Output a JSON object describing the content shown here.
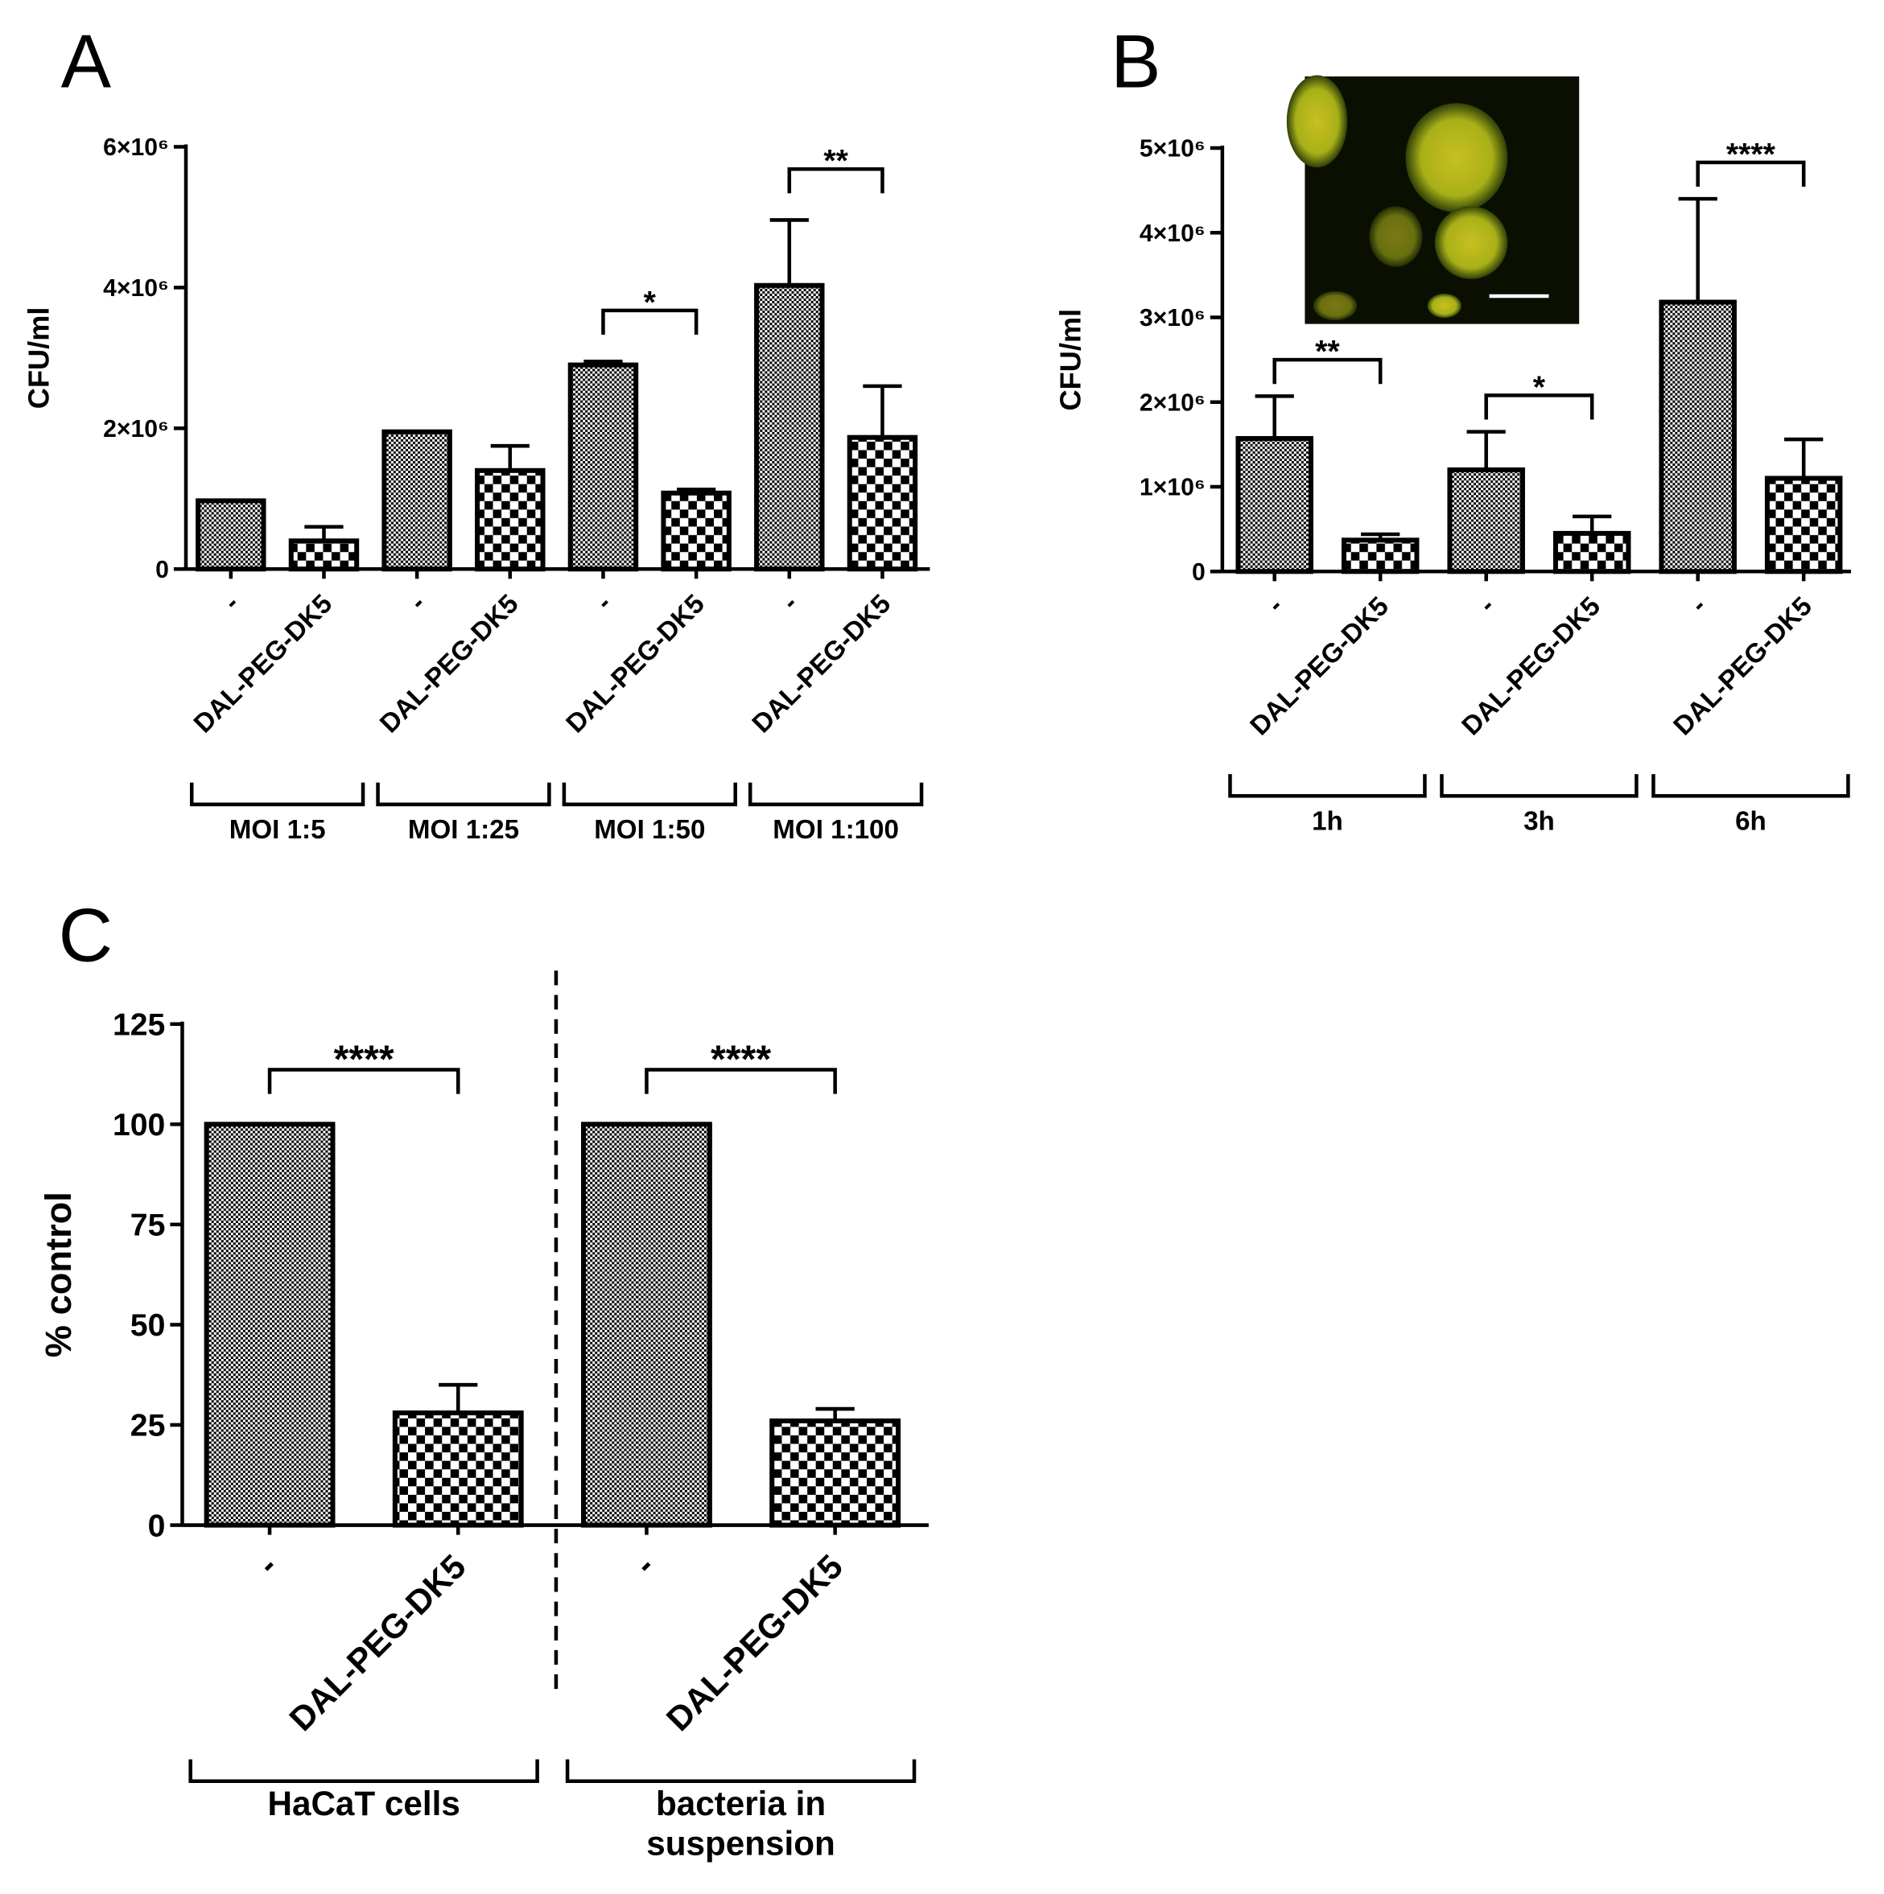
{
  "chart_data": [
    {
      "type": "bar",
      "panel": "A",
      "y_label": "CFU/ml",
      "categories": [
        "-",
        "DAL-PEG-DK5",
        "-",
        "DAL-PEG-DK5",
        "-",
        "DAL-PEG-DK5",
        "-",
        "DAL-PEG-DK5"
      ],
      "values": [
        970000,
        400000,
        1950000,
        1400000,
        2900000,
        1080000,
        4030000,
        1870000
      ],
      "errors": [
        0,
        200000,
        0,
        350000,
        50000,
        50000,
        930000,
        730000
      ],
      "ylim": [
        0,
        6000000
      ],
      "yticks": [
        0,
        {
          "value": 2000000,
          "label": "2×10⁶"
        },
        {
          "value": 4000000,
          "label": "4×10⁶"
        },
        {
          "value": 6000000,
          "label": "6×10⁶"
        }
      ],
      "groups": [
        [
          "MOI 1:5"
        ],
        [
          "MOI 1:25"
        ],
        [
          "MOI 1:50"
        ],
        [
          "MOI 1:100"
        ]
      ],
      "annotations": [
        {
          "text": "*",
          "from": 4,
          "to": 5
        },
        {
          "text": "**",
          "from": 6,
          "to": 7
        }
      ]
    },
    {
      "type": "bar",
      "panel": "B",
      "y_label": "CFU/ml",
      "categories": [
        "-",
        "DAL-PEG-DK5",
        "-",
        "DAL-PEG-DK5",
        "-",
        "DAL-PEG-DK5"
      ],
      "values": [
        1570000,
        370000,
        1200000,
        450000,
        3180000,
        1100000
      ],
      "errors": [
        500000,
        70000,
        450000,
        200000,
        1220000,
        460000
      ],
      "ylim": [
        0,
        5000000
      ],
      "yticks": [
        0,
        {
          "value": 1000000,
          "label": "1×10⁶"
        },
        {
          "value": 2000000,
          "label": "2×10⁶"
        },
        {
          "value": 3000000,
          "label": "3×10⁶"
        },
        {
          "value": 4000000,
          "label": "4×10⁶"
        },
        {
          "value": 5000000,
          "label": "5×10⁶"
        }
      ],
      "groups": [
        [
          "1h"
        ],
        [
          "3h"
        ],
        [
          "6h"
        ]
      ],
      "annotations": [
        {
          "text": "**",
          "from": 0,
          "to": 1
        },
        {
          "text": "*",
          "from": 2,
          "to": 3
        },
        {
          "text": "****",
          "from": 4,
          "to": 5
        }
      ]
    },
    {
      "type": "bar",
      "panel": "C",
      "y_label": "% control",
      "categories": [
        "-",
        "DAL-PEG-DK5",
        "-",
        "DAL-PEG-DK5"
      ],
      "values": [
        100,
        28,
        100,
        26
      ],
      "errors": [
        0,
        7,
        0,
        3
      ],
      "ylim": [
        0,
        125
      ],
      "yticks": [
        0,
        25,
        50,
        75,
        100,
        125
      ],
      "groups": [
        [
          "HaCaT cells"
        ],
        [
          "bacteria in",
          "suspension"
        ]
      ],
      "annotations": [
        {
          "text": "****",
          "from": 0,
          "to": 1
        },
        {
          "text": "****",
          "from": 2,
          "to": 3
        }
      ]
    }
  ]
}
